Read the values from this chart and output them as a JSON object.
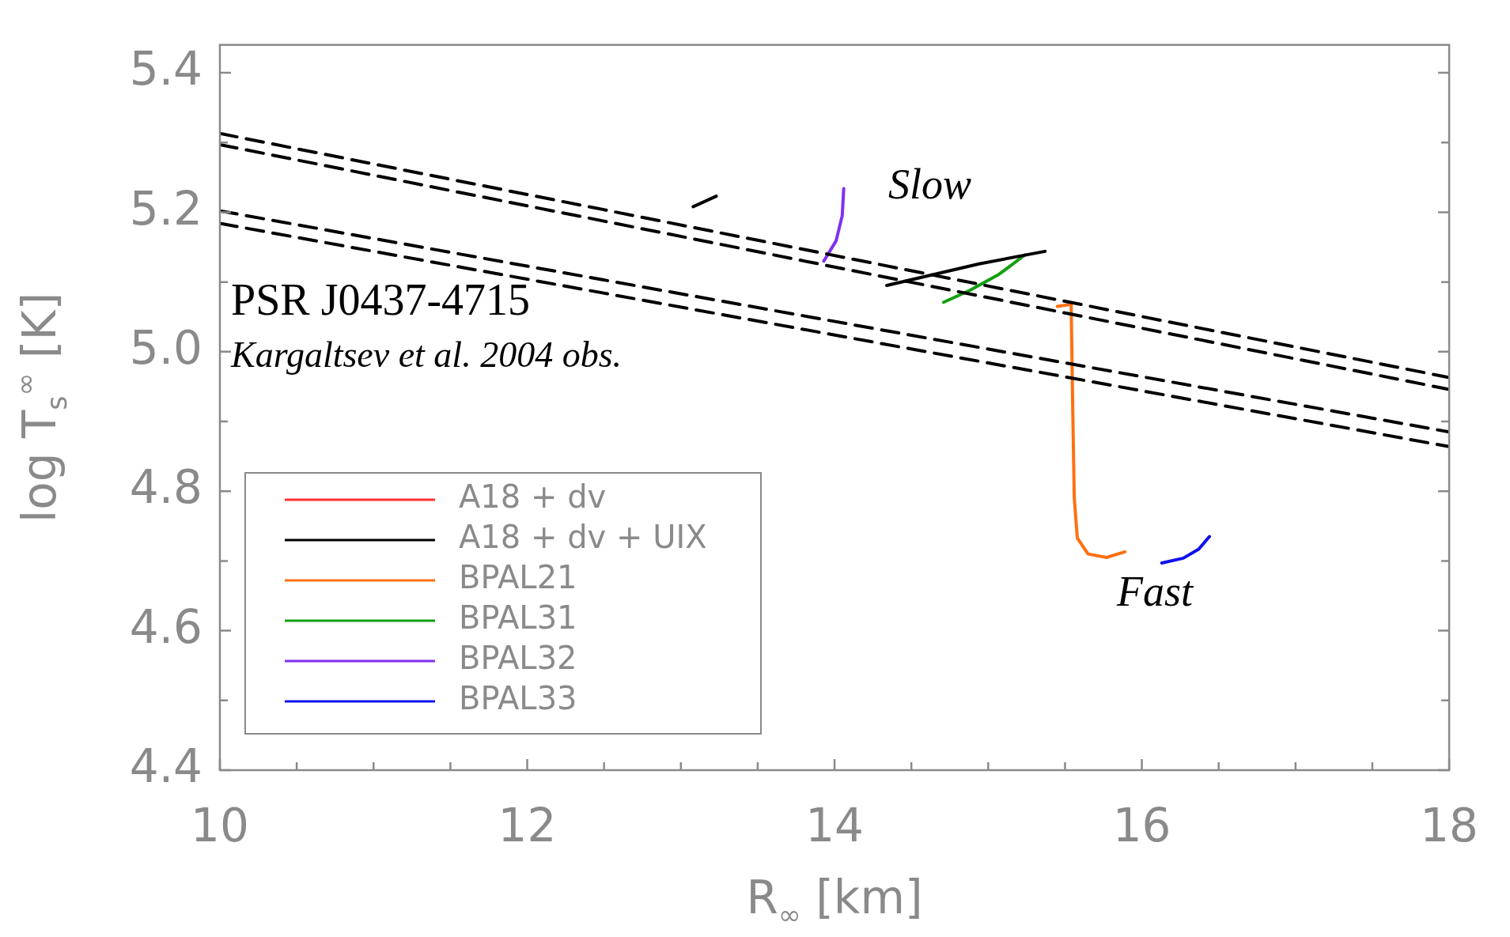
{
  "chart_data": {
    "type": "line",
    "xlabel": "R$_{∞}$ [km]",
    "ylabel": "log T$_{s}$$^{∞}$ [K]",
    "xlim": [
      10,
      18
    ],
    "xticks": [
      10,
      {
        "value": 10.5,
        "label": null
      },
      {
        "value": 11,
        "label": null
      },
      {
        "value": 11.5,
        "label": null
      },
      12,
      {
        "value": 12.5,
        "label": null
      },
      {
        "value": 13,
        "label": null
      },
      {
        "value": 13.5,
        "label": null
      },
      14,
      {
        "value": 14.5,
        "label": null
      },
      {
        "value": 15,
        "label": null
      },
      {
        "value": 15.5,
        "label": null
      },
      16,
      {
        "value": 16.5,
        "label": null
      },
      {
        "value": 17,
        "label": null
      },
      {
        "value": 17.5,
        "label": null
      },
      18
    ],
    "ylim": [
      4.4,
      5.44
    ],
    "yticks": [
      4.4,
      {
        "value": 4.5,
        "label": null
      },
      4.6,
      {
        "value": 4.7,
        "label": null
      },
      4.8,
      {
        "value": 4.9,
        "label": null
      },
      {
        "value": 5,
        "label": "5.0"
      },
      {
        "value": 5.1,
        "label": null
      },
      5.2,
      {
        "value": 5.3,
        "label": null
      },
      5.4
    ],
    "grid": false,
    "legend": "bottom left",
    "marker": "none",
    "series": [
      {
        "color": "#000000",
        "line_style": "dashed",
        "x": [
          10,
          18
        ],
        "values": [
          5.313,
          4.963
        ]
      },
      {
        "color": "#000000",
        "line_style": "dashed",
        "x": [
          10,
          18
        ],
        "values": [
          5.297,
          4.946
        ]
      },
      {
        "color": "#000000",
        "line_style": "dashed",
        "x": [
          10,
          18
        ],
        "values": [
          5.202,
          4.885
        ]
      },
      {
        "color": "#000000",
        "line_style": "dashed",
        "x": [
          10,
          18
        ],
        "values": [
          5.184,
          4.864
        ]
      },
      {
        "name": "A18 + dv",
        "color": "#ff3030",
        "line_style": "solid"
      },
      {
        "name": "A18 + dv + UIX",
        "color": "#000000",
        "x": [
          13.08,
          13.23,
          13.3,
          14.34,
          14.94,
          15.37
        ],
        "values": [
          5.208,
          5.223,
          null,
          5.095,
          5.126,
          5.144
        ]
      },
      {
        "name": "BPAL21",
        "color": "#ff7010",
        "x": [
          15.45,
          15.54,
          15.55,
          15.56,
          15.58,
          15.65,
          15.77,
          15.89
        ],
        "values": [
          5.065,
          5.068,
          4.921,
          4.791,
          4.733,
          4.71,
          4.705,
          4.713
        ]
      },
      {
        "name": "BPAL31",
        "color": "#10a010",
        "x": [
          14.71,
          14.88,
          15.07,
          15.24
        ],
        "values": [
          5.071,
          5.088,
          5.111,
          5.139
        ]
      },
      {
        "name": "BPAL32",
        "color": "#8030f0",
        "x": [
          14.06,
          14.05,
          14.01,
          13.93
        ],
        "values": [
          5.234,
          5.195,
          5.159,
          5.13
        ]
      },
      {
        "name": "BPAL33",
        "color": "#1010f0",
        "x": [
          16.13,
          16.27,
          16.37,
          16.44
        ],
        "values": [
          4.697,
          4.704,
          4.717,
          4.735
        ]
      }
    ],
    "annotations": [
      "Slow",
      "Fast",
      "PSR J0437-4715",
      "Kargaltsev et al. 2004 obs."
    ]
  }
}
